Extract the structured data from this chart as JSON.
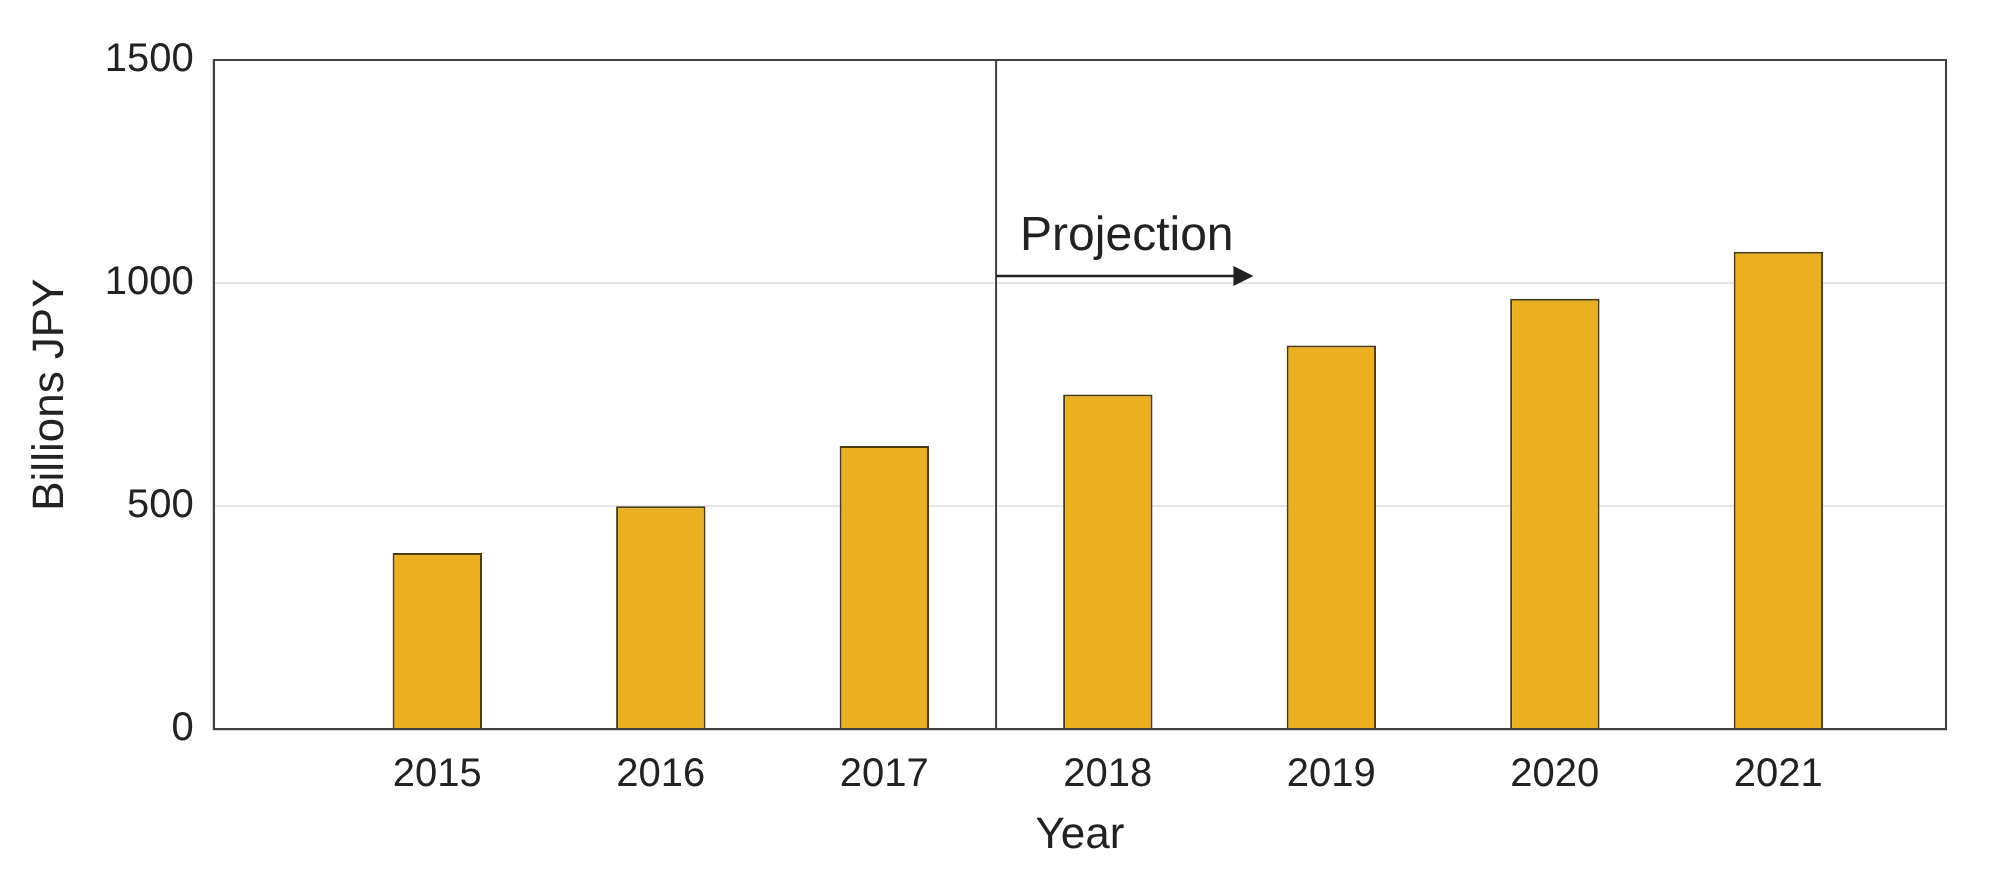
{
  "chart_data": {
    "type": "bar",
    "xlabel": "Year",
    "ylabel": "Billions JPY",
    "x": [
      2015,
      2016,
      2017,
      2018,
      2019,
      2020,
      2021
    ],
    "values": [
      395,
      500,
      635,
      750,
      860,
      965,
      1070
    ],
    "color": "#ebb022",
    "xlim": [
      2014,
      2021.75
    ],
    "xticks": [
      2015,
      2016,
      2017,
      2018,
      2019,
      2020,
      2021
    ],
    "ylim": [
      0,
      1500
    ],
    "yticks": [
      0,
      500,
      1000,
      1500
    ],
    "grid": "y",
    "legend": false,
    "ref_lines": [
      {
        "axis": "x",
        "value": 2017.5,
        "color": "#404040"
      }
    ],
    "annotations": [
      {
        "text": "Projection",
        "x": 2017.5,
        "y": 1015
      }
    ]
  }
}
